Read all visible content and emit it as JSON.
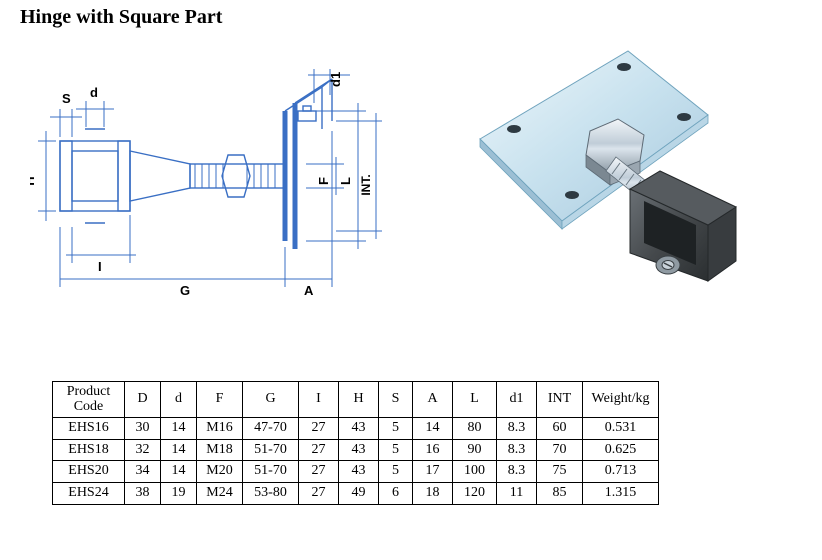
{
  "title": "Hinge with Square Part",
  "drawing": {
    "stroke": "#3a6fc4",
    "dim_labels": [
      "S",
      "d",
      "d1",
      "H",
      "I",
      "G",
      "A",
      "F",
      "L",
      "INT."
    ]
  },
  "photo": {
    "plate_fill": "#cfe5f0",
    "plate_stroke": "#6fa3bd",
    "metal_light": "#e8eef3",
    "metal_mid": "#b0bcc6",
    "metal_dark": "#6d7880",
    "body_fill": "#4a4d50",
    "body_edge": "#2f3335"
  },
  "table": {
    "columns": [
      {
        "key": "code",
        "label_line1": "Product",
        "label_line2": "Code",
        "class": "c-pcode"
      },
      {
        "key": "D",
        "label": "D",
        "class": "c-D"
      },
      {
        "key": "d",
        "label": "d",
        "class": "c-d"
      },
      {
        "key": "F",
        "label": "F",
        "class": "c-F"
      },
      {
        "key": "G",
        "label": "G",
        "class": "c-G"
      },
      {
        "key": "I",
        "label": "I",
        "class": "c-I"
      },
      {
        "key": "H",
        "label": "H",
        "class": "c-H"
      },
      {
        "key": "S",
        "label": "S",
        "class": "c-S"
      },
      {
        "key": "A",
        "label": "A",
        "class": "c-A"
      },
      {
        "key": "L",
        "label": "L",
        "class": "c-L"
      },
      {
        "key": "d1",
        "label": "d1",
        "class": "c-d1"
      },
      {
        "key": "INT",
        "label": "INT",
        "class": "c-INT"
      },
      {
        "key": "weight",
        "label": "Weight/kg",
        "class": "c-W"
      }
    ],
    "rows": [
      {
        "code": "EHS16",
        "D": "30",
        "d": "14",
        "F": "M16",
        "G": "47-70",
        "I": "27",
        "H": "43",
        "S": "5",
        "A": "14",
        "L": "80",
        "d1": "8.3",
        "INT": "60",
        "weight": "0.531"
      },
      {
        "code": "EHS18",
        "D": "32",
        "d": "14",
        "F": "M18",
        "G": "51-70",
        "I": "27",
        "H": "43",
        "S": "5",
        "A": "16",
        "L": "90",
        "d1": "8.3",
        "INT": "70",
        "weight": "0.625"
      },
      {
        "code": "EHS20",
        "D": "34",
        "d": "14",
        "F": "M20",
        "G": "51-70",
        "I": "27",
        "H": "43",
        "S": "5",
        "A": "17",
        "L": "100",
        "d1": "8.3",
        "INT": "75",
        "weight": "0.713"
      },
      {
        "code": "EHS24",
        "D": "38",
        "d": "19",
        "F": "M24",
        "G": "53-80",
        "I": "27",
        "H": "49",
        "S": "6",
        "A": "18",
        "L": "120",
        "d1": "11",
        "INT": "85",
        "weight": "1.315"
      }
    ]
  }
}
